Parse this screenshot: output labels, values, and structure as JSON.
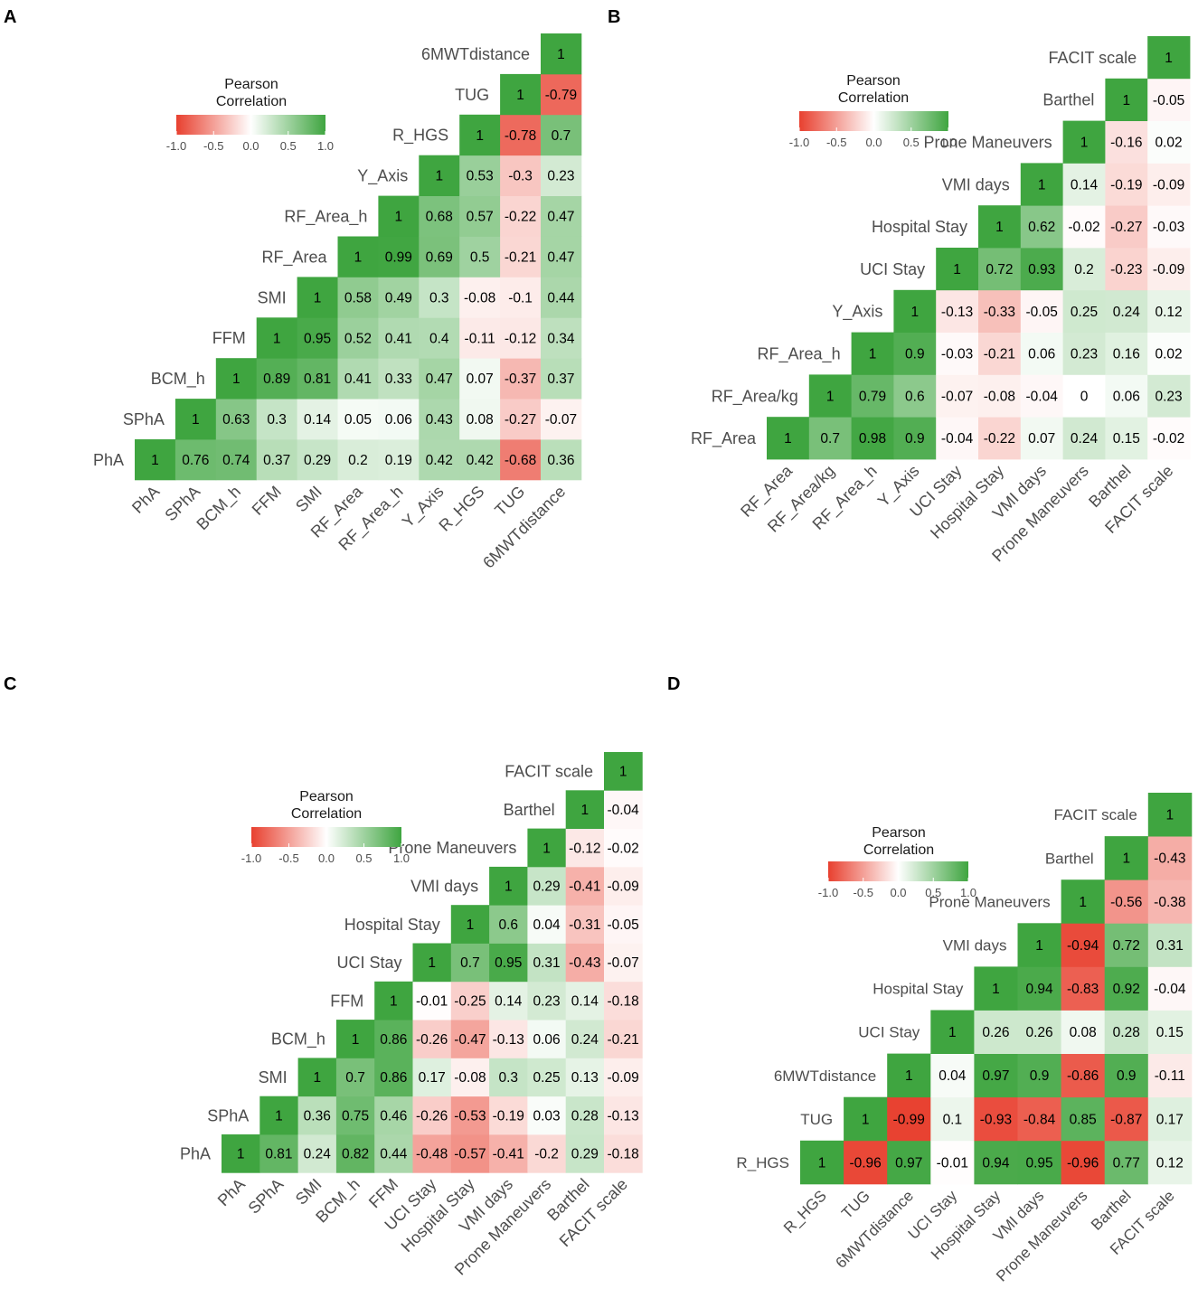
{
  "figure": {
    "panel_labels": [
      "A",
      "B",
      "C",
      "D"
    ]
  },
  "colors": {
    "negative": "#e8402f",
    "zero": "#ffffff",
    "positive": "#3fa540",
    "axis_text": "#4d4d4d"
  },
  "chart_data": [
    {
      "panel": "A",
      "type": "heatmap",
      "legend_title": [
        "Pearson",
        "Correlation"
      ],
      "legend_ticks": [
        "-1.0",
        "-0.5",
        "0.0",
        "0.5",
        "1.0"
      ],
      "legend_range": [
        -1,
        1
      ],
      "variables": [
        "PhA",
        "SPhA",
        "BCM_h",
        "FFM",
        "SMI",
        "RF_Area",
        "RF_Area_h",
        "Y_Axis",
        "R_HGS",
        "TUG",
        "6MWTdistance"
      ],
      "matrix": [
        [
          1
        ],
        [
          0.76,
          1
        ],
        [
          0.74,
          0.63,
          1
        ],
        [
          0.37,
          0.3,
          0.89,
          1
        ],
        [
          0.29,
          0.14,
          0.81,
          0.95,
          1
        ],
        [
          0.2,
          0.05,
          0.41,
          0.52,
          0.58,
          1
        ],
        [
          0.19,
          0.06,
          0.33,
          0.41,
          0.49,
          0.99,
          1
        ],
        [
          0.42,
          0.43,
          0.47,
          0.4,
          0.3,
          0.69,
          0.68,
          1
        ],
        [
          0.42,
          0.08,
          0.07,
          -0.11,
          -0.08,
          0.5,
          0.57,
          0.53,
          1
        ],
        [
          -0.68,
          -0.27,
          -0.37,
          -0.12,
          -0.1,
          -0.21,
          -0.22,
          -0.3,
          -0.78,
          1
        ],
        [
          0.36,
          -0.07,
          0.37,
          0.34,
          0.44,
          0.47,
          0.47,
          0.23,
          0.7,
          -0.79,
          1
        ]
      ],
      "cell_labels": [
        [
          "1"
        ],
        [
          "0.76",
          "1"
        ],
        [
          "0.74",
          "0.63",
          "1"
        ],
        [
          "0.37",
          "0.3",
          "0.89",
          "1"
        ],
        [
          "0.29",
          "0.14",
          "0.81",
          "0.95",
          "1"
        ],
        [
          "0.2",
          "0.05",
          "0.41",
          "0.52",
          "0.58",
          "1"
        ],
        [
          "0.19",
          "0.06",
          "0.33",
          "0.41",
          "0.49",
          "0.99",
          "1"
        ],
        [
          "0.42",
          "0.43",
          "0.47",
          "0.4",
          "0.3",
          "0.69",
          "0.68",
          "1"
        ],
        [
          "0.42",
          "0.08",
          "0.07",
          "-0.11",
          "-0.08",
          "0.5",
          "0.57",
          "0.53",
          "1"
        ],
        [
          "-0.68",
          "-0.27",
          "-0.37",
          "-0.12",
          "-0.1",
          "-0.21",
          "-0.22",
          "-0.3",
          "-0.78",
          "1"
        ],
        [
          "0.36",
          "-0.07",
          "0.37",
          "0.34",
          "0.44",
          "0.47",
          "0.47",
          "0.23",
          "0.7",
          "-0.79",
          "1"
        ]
      ]
    },
    {
      "panel": "B",
      "type": "heatmap",
      "legend_title": [
        "Pearson",
        "Correlation"
      ],
      "legend_ticks": [
        "-1.0",
        "-0.5",
        "0.0",
        "0.5",
        "1.0"
      ],
      "legend_range": [
        -1,
        1
      ],
      "variables": [
        "RF_Area",
        "RF_Area/kg",
        "RF_Area_h",
        "Y_Axis",
        "UCI Stay",
        "Hospital Stay",
        "VMI days",
        "Prone Maneuvers",
        "Barthel",
        "FACIT scale"
      ],
      "matrix": [
        [
          1
        ],
        [
          0.7,
          1
        ],
        [
          0.98,
          0.79,
          1
        ],
        [
          0.9,
          0.6,
          0.9,
          1
        ],
        [
          -0.04,
          -0.07,
          -0.03,
          -0.13,
          1
        ],
        [
          -0.22,
          -0.08,
          -0.21,
          -0.33,
          0.72,
          1
        ],
        [
          0.07,
          -0.04,
          0.06,
          -0.05,
          0.93,
          0.62,
          1
        ],
        [
          0.24,
          0,
          0.23,
          0.25,
          0.2,
          -0.02,
          0.14,
          1
        ],
        [
          0.15,
          0.06,
          0.16,
          0.24,
          -0.23,
          -0.27,
          -0.19,
          -0.16,
          1
        ],
        [
          -0.02,
          0.23,
          0.02,
          0.12,
          -0.09,
          -0.03,
          -0.09,
          0.02,
          -0.05,
          1
        ]
      ],
      "cell_labels": [
        [
          "1"
        ],
        [
          "0.7",
          "1"
        ],
        [
          "0.98",
          "0.79",
          "1"
        ],
        [
          "0.9",
          "0.6",
          "0.9",
          "1"
        ],
        [
          "-0.04",
          "-0.07",
          "-0.03",
          "-0.13",
          "1"
        ],
        [
          "-0.22",
          "-0.08",
          "-0.21",
          "-0.33",
          "0.72",
          "1"
        ],
        [
          "0.07",
          "-0.04",
          "0.06",
          "-0.05",
          "0.93",
          "0.62",
          "1"
        ],
        [
          "0.24",
          "0",
          "0.23",
          "0.25",
          "0.2",
          "-0.02",
          "0.14",
          "1"
        ],
        [
          "0.15",
          "0.06",
          "0.16",
          "0.24",
          "-0.23",
          "-0.27",
          "-0.19",
          "-0.16",
          "1"
        ],
        [
          "-0.02",
          "0.23",
          "0.02",
          "0.12",
          "-0.09",
          "-0.03",
          "-0.09",
          "0.02",
          "-0.05",
          "1"
        ]
      ]
    },
    {
      "panel": "C",
      "type": "heatmap",
      "legend_title": [
        "Pearson",
        "Correlation"
      ],
      "legend_ticks": [
        "-1.0",
        "-0.5",
        "0.0",
        "0.5",
        "1.0"
      ],
      "legend_range": [
        -1,
        1
      ],
      "variables": [
        "PhA",
        "SPhA",
        "SMI",
        "BCM_h",
        "FFM",
        "UCI Stay",
        "Hospital Stay",
        "VMI days",
        "Prone Maneuvers",
        "Barthel",
        "FACIT scale"
      ],
      "matrix": [
        [
          1
        ],
        [
          0.81,
          1
        ],
        [
          0.24,
          0.36,
          1
        ],
        [
          0.82,
          0.75,
          0.7,
          1
        ],
        [
          0.44,
          0.46,
          0.86,
          0.86,
          1
        ],
        [
          -0.48,
          -0.26,
          0.17,
          -0.26,
          -0.01,
          1
        ],
        [
          -0.57,
          -0.53,
          -0.08,
          -0.47,
          -0.25,
          0.7,
          1
        ],
        [
          -0.41,
          -0.19,
          0.3,
          -0.13,
          0.14,
          0.95,
          0.6,
          1
        ],
        [
          -0.2,
          0.03,
          0.25,
          0.06,
          0.23,
          0.31,
          0.04,
          0.29,
          1
        ],
        [
          0.29,
          0.28,
          0.13,
          0.24,
          0.14,
          -0.43,
          -0.31,
          -0.41,
          -0.12,
          1
        ],
        [
          -0.18,
          -0.13,
          -0.09,
          -0.21,
          -0.18,
          -0.07,
          -0.05,
          -0.09,
          -0.02,
          -0.04,
          1
        ]
      ],
      "cell_labels": [
        [
          "1"
        ],
        [
          "0.81",
          "1"
        ],
        [
          "0.24",
          "0.36",
          "1"
        ],
        [
          "0.82",
          "0.75",
          "0.7",
          "1"
        ],
        [
          "0.44",
          "0.46",
          "0.86",
          "0.86",
          "1"
        ],
        [
          "-0.48",
          "-0.26",
          "0.17",
          "-0.26",
          "-0.01",
          "1"
        ],
        [
          "-0.57",
          "-0.53",
          "-0.08",
          "-0.47",
          "-0.25",
          "0.7",
          "1"
        ],
        [
          "-0.41",
          "-0.19",
          "0.3",
          "-0.13",
          "0.14",
          "0.95",
          "0.6",
          "1"
        ],
        [
          "-0.2",
          "0.03",
          "0.25",
          "0.06",
          "0.23",
          "0.31",
          "0.04",
          "0.29",
          "1"
        ],
        [
          "0.29",
          "0.28",
          "0.13",
          "0.24",
          "0.14",
          "-0.43",
          "-0.31",
          "-0.41",
          "-0.12",
          "1"
        ],
        [
          "-0.18",
          "-0.13",
          "-0.09",
          "-0.21",
          "-0.18",
          "-0.07",
          "-0.05",
          "-0.09",
          "-0.02",
          "-0.04",
          "1"
        ]
      ]
    },
    {
      "panel": "D",
      "type": "heatmap",
      "legend_title": [
        "Pearson",
        "Correlation"
      ],
      "legend_ticks": [
        "-1.0",
        "-0.5",
        "0.0",
        "0.5",
        "1.0"
      ],
      "legend_range": [
        -1,
        1
      ],
      "variables": [
        "R_HGS",
        "TUG",
        "6MWTdistance",
        "UCI Stay",
        "Hospital Stay",
        "VMI days",
        "Prone Maneuvers",
        "Barthel",
        "FACIT scale"
      ],
      "matrix": [
        [
          1
        ],
        [
          -0.96,
          1
        ],
        [
          0.97,
          -0.99,
          1
        ],
        [
          -0.01,
          0.1,
          0.04,
          1
        ],
        [
          0.94,
          -0.93,
          0.97,
          0.26,
          1
        ],
        [
          0.95,
          -0.84,
          0.9,
          0.26,
          0.94,
          1
        ],
        [
          -0.96,
          0.85,
          -0.86,
          0.08,
          -0.83,
          -0.94,
          1
        ],
        [
          0.77,
          -0.87,
          0.9,
          0.28,
          0.92,
          0.72,
          -0.56,
          1
        ],
        [
          0.12,
          0.17,
          -0.11,
          0.15,
          -0.04,
          0.31,
          -0.38,
          -0.43,
          1
        ]
      ],
      "cell_labels": [
        [
          "1"
        ],
        [
          "-0.96",
          "1"
        ],
        [
          "0.97",
          "-0.99",
          "1"
        ],
        [
          "-0.01",
          "0.1",
          "0.04",
          "1"
        ],
        [
          "0.94",
          "-0.93",
          "0.97",
          "0.26",
          "1"
        ],
        [
          "0.95",
          "-0.84",
          "0.9",
          "0.26",
          "0.94",
          "1"
        ],
        [
          "-0.96",
          "0.85",
          "-0.86",
          "0.08",
          "-0.83",
          "-0.94",
          "1"
        ],
        [
          "0.77",
          "-0.87",
          "0.9",
          "0.28",
          "0.92",
          "0.72",
          "-0.56",
          "1"
        ],
        [
          "0.12",
          "0.17",
          "-0.11",
          "0.15",
          "-0.04",
          "0.31",
          "-0.38",
          "-0.43",
          "1"
        ]
      ]
    }
  ]
}
